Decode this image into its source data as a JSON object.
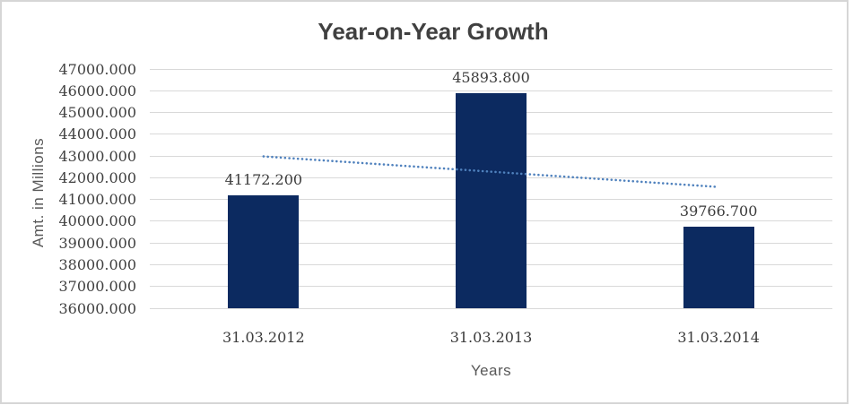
{
  "chart_data": {
    "type": "bar",
    "title": "Year-on-Year Growth",
    "xlabel": "Years",
    "ylabel": "Amt. in Millions",
    "categories": [
      "31.03.2012",
      "31.03.2013",
      "31.03.2014"
    ],
    "values": [
      41172.2,
      45893.8,
      39766.7
    ],
    "value_labels": [
      "41172.200",
      "45893.800",
      "39766.700"
    ],
    "ylim": [
      36000,
      47000
    ],
    "y_tick_step": 1000,
    "y_tick_labels": [
      "47000.000",
      "46000.000",
      "45000.000",
      "44000.000",
      "43000.000",
      "42000.000",
      "41000.000",
      "40000.000",
      "39000.000",
      "38000.000",
      "37000.000",
      "36000.000"
    ],
    "grid": true,
    "legend": false,
    "bar_color": "#0C2A60",
    "trendline": {
      "style": "dotted",
      "color": "#4F81BD",
      "start_value": 42980,
      "end_value": 41575
    },
    "colors": {
      "gridline": "#D9D9D9",
      "title_text": "#404040",
      "tick_text": "#3B3B3B",
      "axis_title_text": "#595959",
      "frame_border": "#D6D6D6"
    }
  }
}
